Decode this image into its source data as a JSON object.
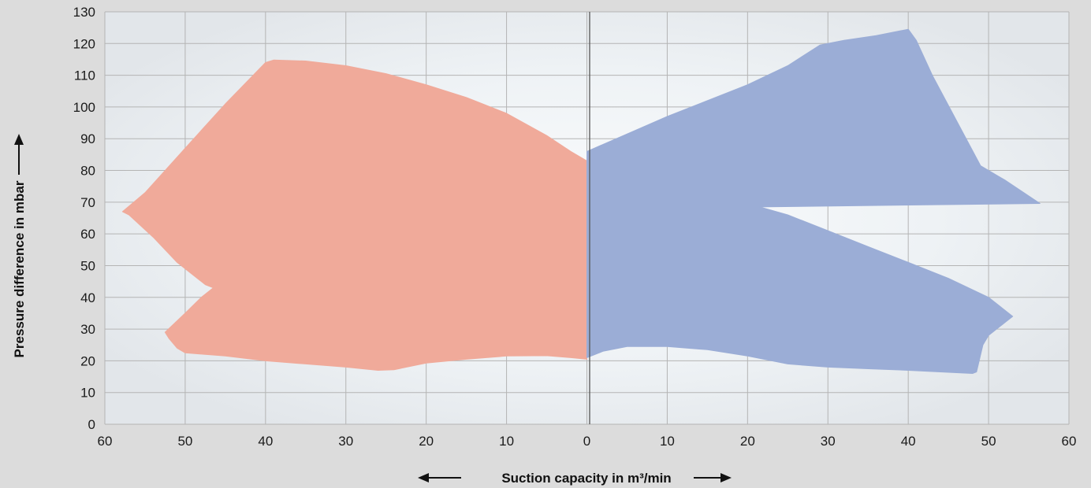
{
  "chart_data": {
    "type": "area",
    "xlabel": "Suction capacity  in m³/min",
    "ylabel": "Pressure difference in mbar",
    "x_tick_labels": [
      "60",
      "50",
      "40",
      "30",
      "20",
      "10",
      "0",
      "10",
      "20",
      "30",
      "40",
      "50",
      "60"
    ],
    "y_tick_labels": [
      "0",
      "10",
      "20",
      "30",
      "40",
      "50",
      "60",
      "70",
      "80",
      "90",
      "100",
      "110",
      "120",
      "130"
    ],
    "xlim": [
      -60,
      60
    ],
    "ylim": [
      0,
      130
    ],
    "grid": true,
    "legend": "none",
    "x_axis_note": "Left half mirrors right half: suction capacity increases outward from 0 in both directions",
    "series": [
      {
        "color": "#f0aa9a",
        "polygon": [
          [
            0,
            83
          ],
          [
            -2,
            86
          ],
          [
            -5,
            91
          ],
          [
            -10,
            98
          ],
          [
            -15,
            103
          ],
          [
            -20,
            107
          ],
          [
            -25,
            110.5
          ],
          [
            -30,
            113
          ],
          [
            -35,
            114.5
          ],
          [
            -39,
            114.8
          ],
          [
            -40,
            114
          ],
          [
            -45,
            101
          ],
          [
            -50,
            87
          ],
          [
            -55,
            73
          ],
          [
            -57.8,
            67
          ],
          [
            -57,
            66
          ],
          [
            -54,
            59
          ],
          [
            -51,
            51
          ],
          [
            -47.5,
            44
          ],
          [
            -46.5,
            43
          ],
          [
            -48,
            40
          ],
          [
            -50,
            35
          ],
          [
            -52.5,
            29
          ],
          [
            -52,
            27
          ],
          [
            -51,
            24
          ],
          [
            -50,
            22.5
          ],
          [
            -45,
            21.5
          ],
          [
            -40,
            20
          ],
          [
            -35,
            19
          ],
          [
            -30,
            18
          ],
          [
            -26,
            17
          ],
          [
            -24,
            17.2
          ],
          [
            -20,
            19.3
          ],
          [
            -15,
            20.5
          ],
          [
            -10,
            21.5
          ],
          [
            -5,
            21.6
          ],
          [
            -2,
            21
          ],
          [
            0,
            20.5
          ]
        ]
      },
      {
        "color": "#9badd6",
        "polygon": [
          [
            0,
            86
          ],
          [
            5,
            91.5
          ],
          [
            10,
            97
          ],
          [
            15,
            102
          ],
          [
            20,
            107
          ],
          [
            25,
            113
          ],
          [
            29,
            119.5
          ],
          [
            32,
            121
          ],
          [
            36,
            122.5
          ],
          [
            40,
            124.5
          ],
          [
            41,
            121
          ],
          [
            43,
            110
          ],
          [
            47,
            91
          ],
          [
            49,
            81.5
          ],
          [
            52,
            77
          ],
          [
            56.4,
            69.6
          ],
          [
            21.5,
            68.5
          ],
          [
            25,
            66
          ],
          [
            30,
            61
          ],
          [
            35,
            56
          ],
          [
            40,
            51
          ],
          [
            45,
            46
          ],
          [
            50,
            40
          ],
          [
            53,
            34
          ],
          [
            52,
            32
          ],
          [
            50,
            28
          ],
          [
            49.3,
            25
          ],
          [
            48.5,
            16.5
          ],
          [
            48,
            16
          ],
          [
            44,
            16.5
          ],
          [
            40,
            17
          ],
          [
            35,
            17.5
          ],
          [
            30,
            18
          ],
          [
            25,
            19
          ],
          [
            20,
            21.5
          ],
          [
            15,
            23.5
          ],
          [
            10,
            24.5
          ],
          [
            5,
            24.5
          ],
          [
            2,
            23
          ],
          [
            0,
            21
          ]
        ]
      }
    ]
  }
}
